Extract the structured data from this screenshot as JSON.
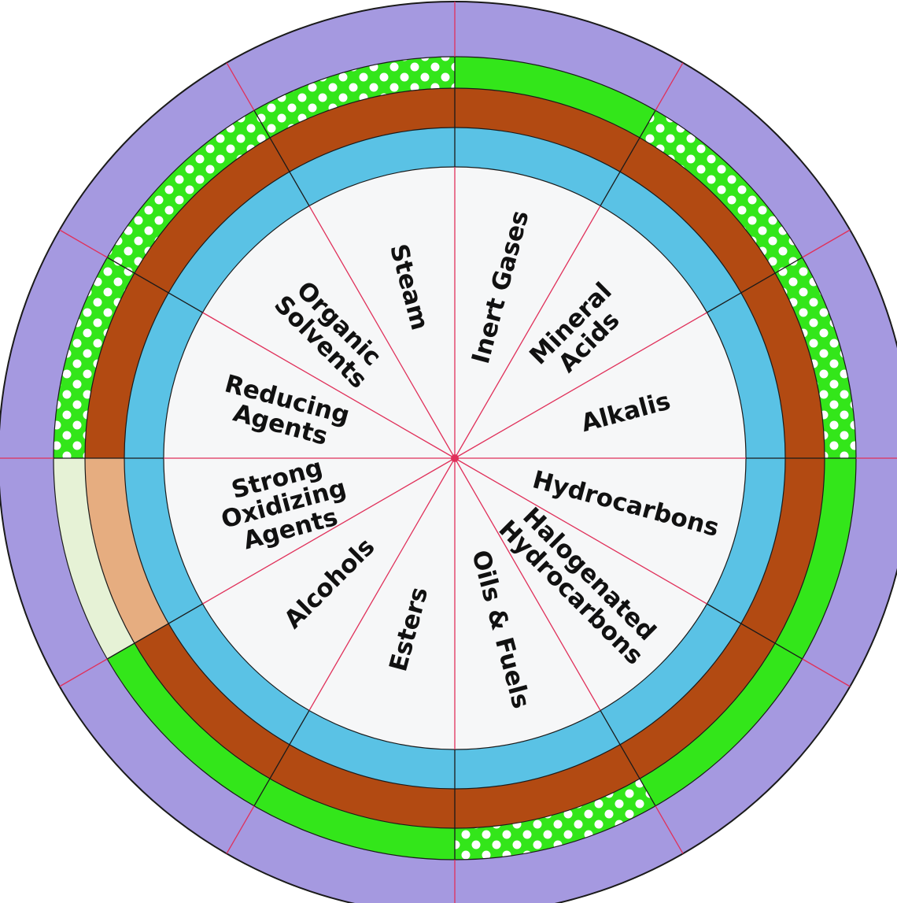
{
  "colors": {
    "outer_ring": "#a599e0",
    "green": "#33e61a",
    "dots": "#ffffff",
    "brown": "#b24a12",
    "peach": "#e6ad80",
    "pale": "#e6f2d6",
    "blue": "#5ac2e5",
    "center": "#f6f7f8",
    "divider": "#e0305a"
  },
  "segments": [
    {
      "id": "inert-gases",
      "lines": [
        "Inert Gases"
      ],
      "green_pattern": "solid",
      "brown_band": "brown"
    },
    {
      "id": "mineral-acids",
      "lines": [
        "Mineral",
        "Acids"
      ],
      "green_pattern": "dotted",
      "brown_band": "brown"
    },
    {
      "id": "alkalis",
      "lines": [
        "Alkalis"
      ],
      "green_pattern": "dotted",
      "brown_band": "brown"
    },
    {
      "id": "hydrocarbons",
      "lines": [
        "Hydrocarbons"
      ],
      "green_pattern": "solid",
      "brown_band": "brown"
    },
    {
      "id": "halogenated-hydrocarbons",
      "lines": [
        "Halogenated",
        "Hydrocarbons"
      ],
      "green_pattern": "solid",
      "brown_band": "brown"
    },
    {
      "id": "oils-fuels",
      "lines": [
        "Oils & Fuels"
      ],
      "green_pattern": "dotted",
      "brown_band": "brown"
    },
    {
      "id": "esters",
      "lines": [
        "Esters"
      ],
      "green_pattern": "solid",
      "brown_band": "brown"
    },
    {
      "id": "alcohols",
      "lines": [
        "Alcohols"
      ],
      "green_pattern": "solid",
      "brown_band": "brown"
    },
    {
      "id": "strong-oxidizing-agents",
      "lines": [
        "Strong",
        "Oxidizing",
        "Agents"
      ],
      "green_pattern": "pale",
      "brown_band": "peach"
    },
    {
      "id": "reducing-agents",
      "lines": [
        "Reducing",
        "Agents"
      ],
      "green_pattern": "dotted",
      "brown_band": "brown"
    },
    {
      "id": "organic-solvents",
      "lines": [
        "Organic",
        "Solvents"
      ],
      "green_pattern": "dotted",
      "brown_band": "brown"
    },
    {
      "id": "steam",
      "lines": [
        "Steam"
      ],
      "green_pattern": "dotted",
      "brown_band": "brown"
    }
  ]
}
